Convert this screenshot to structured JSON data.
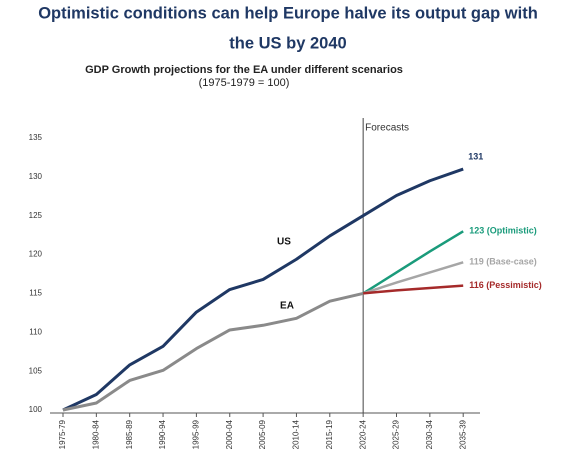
{
  "chart_data": {
    "type": "line",
    "title": [
      "Optimistic conditions can help Europe halve its output gap with",
      "the US by 2040"
    ],
    "subtitle": "GDP Growth projections for the EA under different scenarios",
    "subtitle_note": "(1975-1979 = 100)",
    "annotation": "Forecasts",
    "categories": [
      "1975-79",
      "1980-84",
      "1985-89",
      "1990-94",
      "1995-99",
      "2000-04",
      "2005-09",
      "2010-14",
      "2015-19",
      "2020-24",
      "2025-29",
      "2030-34",
      "2035-39"
    ],
    "series": [
      {
        "name": "US",
        "color": "#1f3864",
        "values": [
          100,
          102,
          105.8,
          108.2,
          112.6,
          115.5,
          116.8,
          119.4,
          122.4,
          125,
          127.6,
          129.5,
          131
        ],
        "end_label": "131"
      },
      {
        "name": "EA",
        "color": "#8a8a8a",
        "values": [
          100,
          100.9,
          103.8,
          105.1,
          107.9,
          110.3,
          110.9,
          111.8,
          114,
          115,
          null,
          null,
          null
        ]
      },
      {
        "color": "#1a9b7b",
        "values": [
          null,
          null,
          null,
          null,
          null,
          null,
          null,
          null,
          null,
          115,
          117.7,
          120.4,
          123
        ],
        "end_label": "123 (Optimistic)"
      },
      {
        "color": "#a6a6a6",
        "values": [
          null,
          null,
          null,
          null,
          null,
          null,
          null,
          null,
          null,
          115,
          116.4,
          117.7,
          119
        ],
        "end_label": "119 (Base-case)"
      },
      {
        "color": "#a52a2a",
        "values": [
          null,
          null,
          null,
          null,
          null,
          null,
          null,
          null,
          null,
          115,
          115.4,
          115.7,
          116
        ],
        "end_label": "116 (Pessimistic)"
      }
    ],
    "ylim": [
      100,
      135
    ],
    "yticks": [
      100,
      105,
      110,
      115,
      120,
      125,
      130,
      135
    ]
  }
}
